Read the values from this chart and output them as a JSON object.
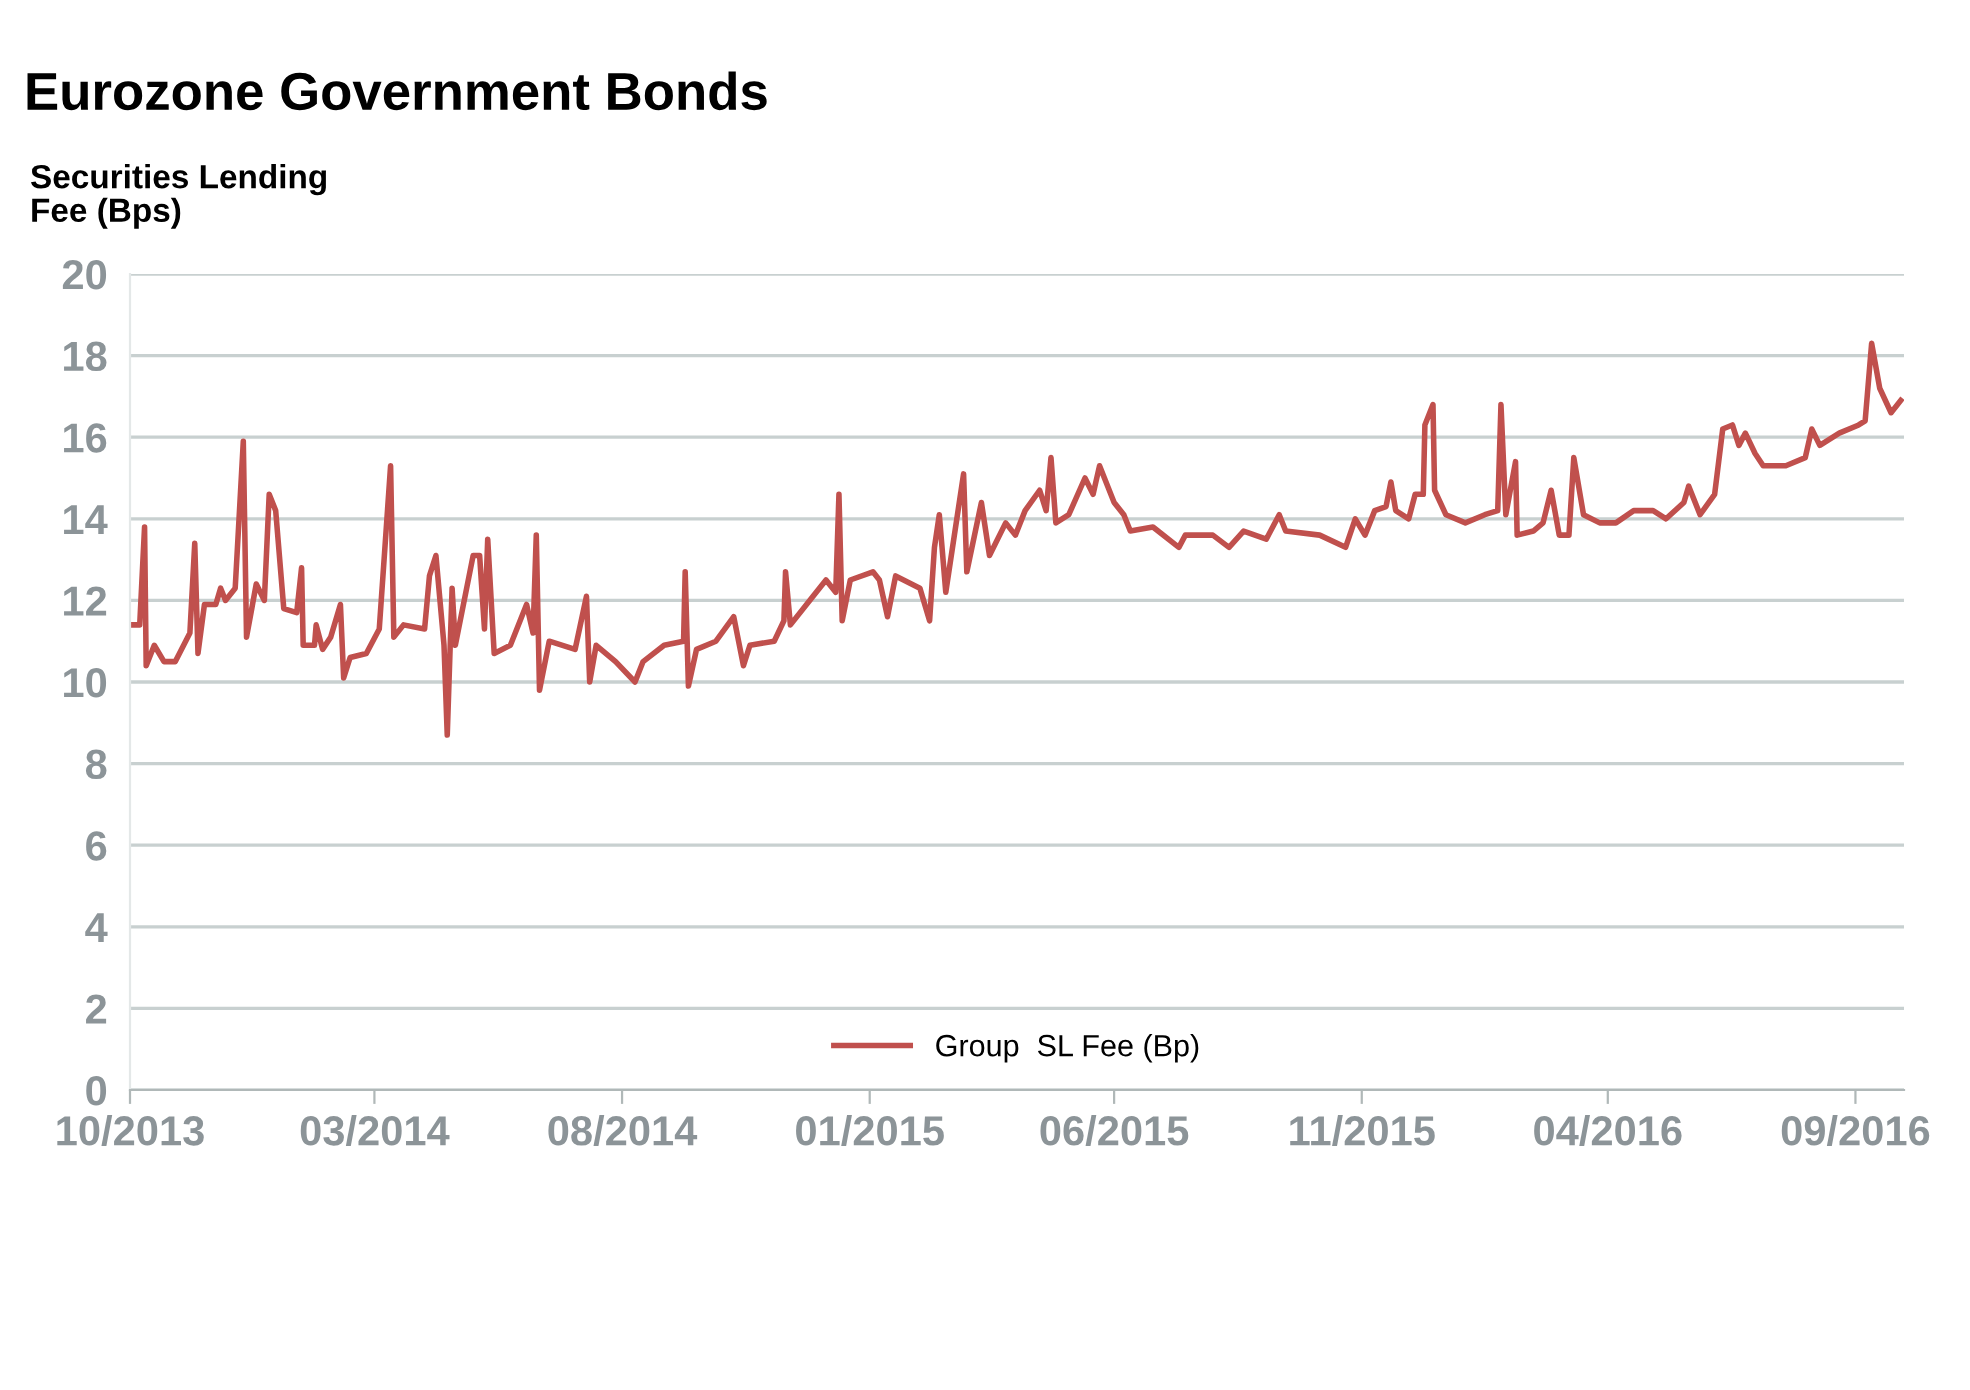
{
  "chart_data": {
    "type": "line",
    "title": "Eurozone Government Bonds",
    "ylabel": "Securities Lending\nFee (Bps)",
    "xlim": [
      "2013-10-01",
      "2016-10-01"
    ],
    "ylim": [
      0,
      20
    ],
    "yticks": [
      0,
      2,
      4,
      6,
      8,
      10,
      12,
      14,
      16,
      18,
      20
    ],
    "xticks": [
      {
        "value": "2013-10-01",
        "label": "10/2013"
      },
      {
        "value": "2014-03-01",
        "label": "03/2014"
      },
      {
        "value": "2014-08-01",
        "label": "08/2014"
      },
      {
        "value": "2015-01-01",
        "label": "01/2015"
      },
      {
        "value": "2015-06-01",
        "label": "06/2015"
      },
      {
        "value": "2015-11-01",
        "label": "11/2015"
      },
      {
        "value": "2016-04-01",
        "label": "04/2016"
      },
      {
        "value": "2016-09-01",
        "label": "09/2016"
      }
    ],
    "grid": "y",
    "legend": "bottom",
    "marker": "none",
    "line_style": "solid",
    "x": [
      "2013-10-01",
      "2013-10-07",
      "2013-10-10",
      "2013-10-11",
      "2013-10-16",
      "2013-10-22",
      "2013-10-29",
      "2013-11-07",
      "2013-11-10",
      "2013-11-12",
      "2013-11-16",
      "2013-11-23",
      "2013-11-26",
      "2013-11-29",
      "2013-12-05",
      "2013-12-10",
      "2013-12-12",
      "2013-12-18",
      "2013-12-23",
      "2013-12-26",
      "2013-12-30",
      "2014-01-04",
      "2014-01-12",
      "2014-01-15",
      "2014-01-16",
      "2014-01-23",
      "2014-01-24",
      "2014-01-28",
      "2014-02-02",
      "2014-02-08",
      "2014-02-10",
      "2014-02-14",
      "2014-02-24",
      "2014-03-04",
      "2014-03-11",
      "2014-03-13",
      "2014-03-19",
      "2014-04-01",
      "2014-04-04",
      "2014-04-08",
      "2014-04-13",
      "2014-04-15",
      "2014-04-18",
      "2014-04-20",
      "2014-05-01",
      "2014-05-05",
      "2014-05-08",
      "2014-05-10",
      "2014-05-14",
      "2014-05-24",
      "2014-06-03",
      "2014-06-07",
      "2014-06-09",
      "2014-06-11",
      "2014-06-17",
      "2014-07-03",
      "2014-07-10",
      "2014-07-12",
      "2014-07-16",
      "2014-07-28",
      "2014-08-09",
      "2014-08-14",
      "2014-08-27",
      "2014-09-08",
      "2014-09-09",
      "2014-09-11",
      "2014-09-16",
      "2014-09-28",
      "2014-10-09",
      "2014-10-15",
      "2014-10-19",
      "2014-11-03",
      "2014-11-09",
      "2014-11-10",
      "2014-11-13",
      "2014-11-27",
      "2014-12-05",
      "2014-12-11",
      "2014-12-13",
      "2014-12-15",
      "2014-12-20",
      "2015-01-03",
      "2015-01-07",
      "2015-01-12",
      "2015-01-17",
      "2015-02-01",
      "2015-02-07",
      "2015-02-10",
      "2015-02-13",
      "2015-02-17",
      "2015-02-28",
      "2015-03-02",
      "2015-03-11",
      "2015-03-16",
      "2015-03-26",
      "2015-04-01",
      "2015-04-07",
      "2015-04-16",
      "2015-04-20",
      "2015-04-23",
      "2015-04-26",
      "2015-05-04",
      "2015-05-14",
      "2015-05-19",
      "2015-05-23",
      "2015-06-01",
      "2015-06-07",
      "2015-06-11",
      "2015-06-25",
      "2015-07-11",
      "2015-07-15",
      "2015-08-01",
      "2015-08-11",
      "2015-08-20",
      "2015-09-03",
      "2015-09-11",
      "2015-09-15",
      "2015-10-06",
      "2015-10-22",
      "2015-10-28",
      "2015-11-03",
      "2015-11-09",
      "2015-11-16",
      "2015-11-19",
      "2015-11-22",
      "2015-11-30",
      "2015-12-04",
      "2015-12-09",
      "2015-12-10",
      "2015-12-15",
      "2015-12-16",
      "2015-12-23",
      "2016-01-04",
      "2016-01-16",
      "2016-01-24",
      "2016-01-26",
      "2016-01-29",
      "2016-02-04",
      "2016-02-05",
      "2016-02-15",
      "2016-02-21",
      "2016-02-26",
      "2016-03-02",
      "2016-03-08",
      "2016-03-11",
      "2016-03-17",
      "2016-03-27",
      "2016-04-06",
      "2016-04-17",
      "2016-04-29",
      "2016-05-07",
      "2016-05-18",
      "2016-05-21",
      "2016-05-28",
      "2016-06-06",
      "2016-06-11",
      "2016-06-17",
      "2016-06-21",
      "2016-06-25",
      "2016-07-01",
      "2016-07-06",
      "2016-07-20",
      "2016-08-01",
      "2016-08-05",
      "2016-08-10",
      "2016-08-22",
      "2016-09-03",
      "2016-09-07",
      "2016-09-11",
      "2016-09-16",
      "2016-09-23",
      "2016-09-29"
    ],
    "series": [
      {
        "name": "Group  SL Fee (Bp)",
        "color": "#c0504d",
        "values": [
          11.4,
          11.4,
          13.8,
          10.4,
          10.9,
          10.5,
          10.5,
          11.2,
          13.4,
          10.7,
          11.9,
          11.9,
          12.3,
          12.0,
          12.3,
          15.9,
          11.1,
          12.4,
          12.0,
          14.6,
          14.2,
          11.8,
          11.7,
          12.8,
          10.9,
          10.9,
          11.4,
          10.8,
          11.1,
          11.9,
          10.1,
          10.6,
          10.7,
          11.3,
          15.3,
          11.1,
          11.4,
          11.3,
          12.6,
          13.1,
          10.9,
          8.7,
          12.3,
          10.9,
          13.1,
          13.1,
          11.3,
          13.5,
          10.7,
          10.9,
          11.9,
          11.2,
          13.6,
          9.8,
          11.0,
          10.8,
          12.1,
          10.0,
          10.9,
          10.5,
          10.0,
          10.5,
          10.9,
          11.0,
          12.7,
          9.9,
          10.8,
          11.0,
          11.6,
          10.4,
          10.9,
          11.0,
          11.5,
          12.7,
          11.4,
          12.1,
          12.5,
          12.2,
          14.6,
          11.5,
          12.5,
          12.7,
          12.5,
          11.6,
          12.6,
          12.3,
          11.5,
          13.3,
          14.1,
          12.2,
          15.1,
          12.7,
          14.4,
          13.1,
          13.9,
          13.6,
          14.2,
          14.7,
          14.2,
          15.5,
          13.9,
          14.1,
          15.0,
          14.6,
          15.3,
          14.4,
          14.1,
          13.7,
          13.8,
          13.3,
          13.6,
          13.6,
          13.3,
          13.7,
          13.5,
          14.1,
          13.7,
          13.6,
          13.3,
          14.0,
          13.6,
          14.2,
          14.3,
          14.9,
          14.2,
          14.0,
          14.6,
          14.6,
          16.3,
          16.8,
          14.7,
          14.1,
          13.9,
          14.1,
          14.2,
          16.8,
          14.1,
          15.4,
          13.6,
          13.7,
          13.9,
          14.7,
          13.6,
          13.6,
          15.5,
          14.1,
          13.9,
          13.9,
          14.2,
          14.2,
          14.0,
          14.4,
          14.8,
          14.1,
          14.6,
          16.2,
          16.3,
          15.8,
          16.1,
          15.6,
          15.3,
          15.3,
          15.5,
          16.2,
          15.8,
          16.1,
          16.3,
          16.4,
          18.3,
          17.2,
          16.6,
          16.9
        ]
      }
    ]
  }
}
